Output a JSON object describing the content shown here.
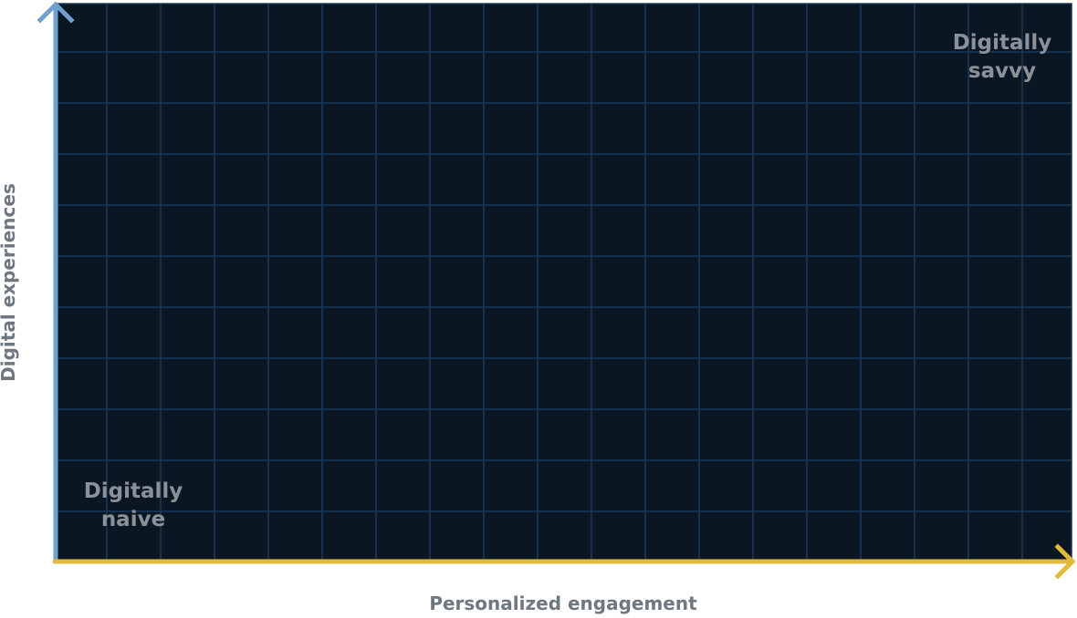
{
  "diagram": {
    "quadrants": {
      "top_right": "Digitally\nsavvy",
      "bottom_left": "Digitally\nnaive"
    },
    "x_axis": {
      "label": "Personalized engagement",
      "color": "#e1b93c"
    },
    "y_axis": {
      "label": "Digital experiences",
      "color": "#6fa1cf"
    },
    "colors": {
      "background": "#0a1722",
      "grid": "#18385c",
      "label_text": "#8a9199"
    }
  }
}
